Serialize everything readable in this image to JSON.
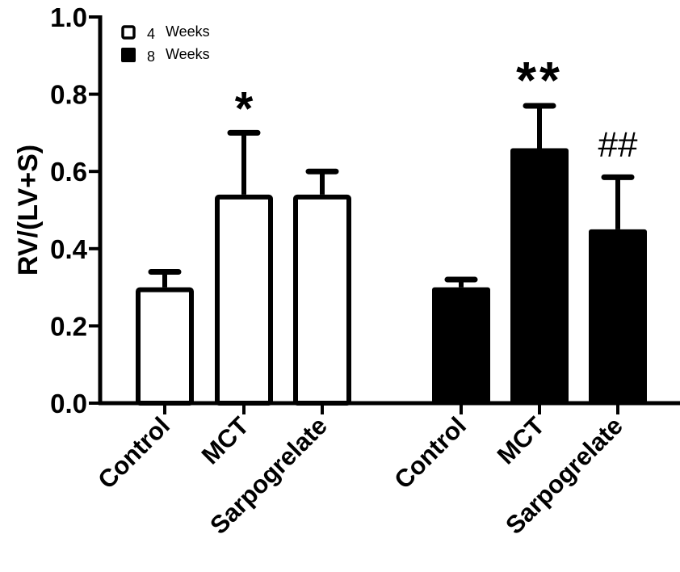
{
  "chart_data": {
    "type": "bar",
    "title": "",
    "xlabel": "",
    "ylabel": "RV/(LV+S)",
    "ylim": [
      0.0,
      1.0
    ],
    "yticks": [
      "0.0",
      "0.2",
      "0.4",
      "0.6",
      "0.8",
      "1.0"
    ],
    "grid": false,
    "legend_position": "top-left",
    "legend": [
      {
        "num": "4",
        "word": "Weeks",
        "fill": "#ffffff"
      },
      {
        "num": "8",
        "word": "Weeks",
        "fill": "#000000"
      }
    ],
    "groups": [
      {
        "name": "4 Weeks",
        "fill": "#ffffff",
        "categories": [
          "Control",
          "MCT",
          "Sarpogrelate"
        ],
        "values": [
          0.3,
          0.54,
          0.54
        ],
        "error_upper": [
          0.34,
          0.7,
          0.6
        ],
        "annotations": [
          "",
          "*",
          ""
        ]
      },
      {
        "name": "8 Weeks",
        "fill": "#000000",
        "categories": [
          "Control",
          "MCT",
          "Sarpogrelate"
        ],
        "values": [
          0.3,
          0.66,
          0.45
        ],
        "error_upper": [
          0.32,
          0.77,
          0.585
        ],
        "annotations": [
          "",
          "**",
          "##"
        ]
      }
    ]
  }
}
